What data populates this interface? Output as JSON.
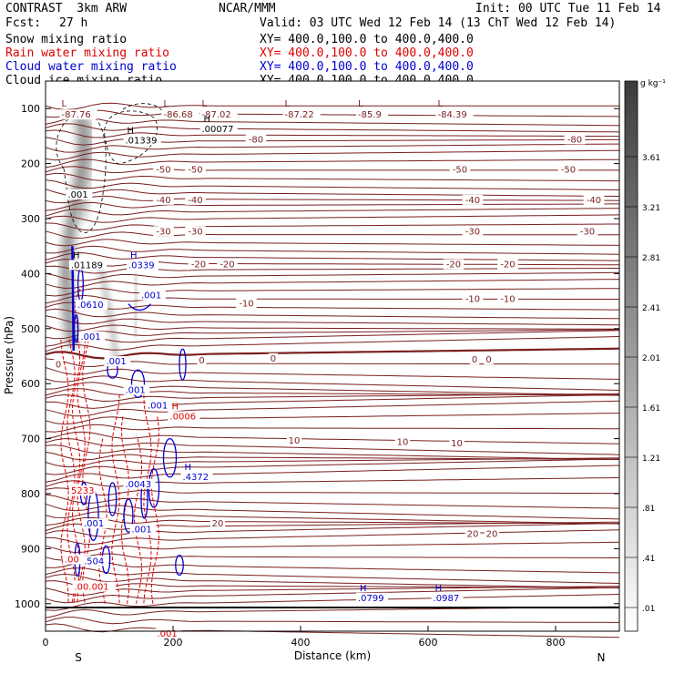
{
  "header": {
    "model": "CONTRAST  3km ARW",
    "center": "NCAR/MMM",
    "init": "Init: 00 UTC Tue 11 Feb 14",
    "fcst_label": "Fcst:",
    "fcst_value": "27 h",
    "valid": "Valid: 03 UTC Wed 12 Feb 14 (13 ChT Wed 12 Feb 14)"
  },
  "fields": [
    {
      "name": "Snow mixing ratio",
      "xy": "XY= 400.0,100.0 to 400.0,400.0",
      "color": "#000000"
    },
    {
      "name": "Rain water mixing ratio",
      "xy": "XY= 400.0,100.0 to 400.0,400.0",
      "color": "#e00000"
    },
    {
      "name": "Cloud water mixing ratio",
      "xy": "XY= 400.0,100.0 to 400.0,400.0",
      "color": "#0000d0"
    },
    {
      "name": "Cloud ice mixing ratio",
      "xy": "XY= 400.0,100.0 to 400.0,400.0",
      "color": "#000000"
    }
  ],
  "chart_data": {
    "type": "contour",
    "xlabel": "Distance (km)",
    "ylabel": "Pressure (hPa)",
    "xlim": [
      0,
      900
    ],
    "ylim": [
      1050,
      50
    ],
    "x_ticks": [
      0,
      200,
      400,
      600,
      800
    ],
    "y_ticks": [
      100,
      200,
      300,
      400,
      500,
      600,
      700,
      800,
      900,
      1000
    ],
    "x_end_labels": {
      "left": "S",
      "right": "N"
    },
    "colorbar": {
      "unit": "g kg⁻¹",
      "ticks": [
        "3.61",
        "3.21",
        "2.81",
        "2.41",
        "2.01",
        "1.61",
        "1.21",
        ".81",
        ".41",
        ".01"
      ]
    },
    "temperature_contour_labels": [
      {
        "x": 330,
        "p": 155,
        "text": "-80"
      },
      {
        "x": 830,
        "p": 155,
        "text": "-80"
      },
      {
        "x": 185,
        "p": 210,
        "text": "-50"
      },
      {
        "x": 235,
        "p": 210,
        "text": "-50"
      },
      {
        "x": 650,
        "p": 210,
        "text": "-50"
      },
      {
        "x": 820,
        "p": 210,
        "text": "-50"
      },
      {
        "x": 185,
        "p": 265,
        "text": "-40"
      },
      {
        "x": 235,
        "p": 265,
        "text": "-40"
      },
      {
        "x": 670,
        "p": 265,
        "text": "-40"
      },
      {
        "x": 860,
        "p": 265,
        "text": "-40"
      },
      {
        "x": 185,
        "p": 322,
        "text": "-30"
      },
      {
        "x": 235,
        "p": 322,
        "text": "-30"
      },
      {
        "x": 670,
        "p": 322,
        "text": "-30"
      },
      {
        "x": 850,
        "p": 322,
        "text": "-30"
      },
      {
        "x": 240,
        "p": 382,
        "text": "-20"
      },
      {
        "x": 285,
        "p": 382,
        "text": "-20"
      },
      {
        "x": 640,
        "p": 382,
        "text": "-20"
      },
      {
        "x": 725,
        "p": 382,
        "text": "-20"
      },
      {
        "x": 315,
        "p": 453,
        "text": "-10"
      },
      {
        "x": 670,
        "p": 445,
        "text": "-10"
      },
      {
        "x": 725,
        "p": 445,
        "text": "-10"
      },
      {
        "x": 20,
        "p": 564,
        "text": "0"
      },
      {
        "x": 245,
        "p": 557,
        "text": "0"
      },
      {
        "x": 357,
        "p": 553,
        "text": "0"
      },
      {
        "x": 673,
        "p": 555,
        "text": "0"
      },
      {
        "x": 695,
        "p": 555,
        "text": "0"
      },
      {
        "x": 390,
        "p": 702,
        "text": "10"
      },
      {
        "x": 560,
        "p": 705,
        "text": "10"
      },
      {
        "x": 645,
        "p": 707,
        "text": "10"
      },
      {
        "x": 270,
        "p": 853,
        "text": "20"
      },
      {
        "x": 670,
        "p": 872,
        "text": "20"
      },
      {
        "x": 700,
        "p": 872,
        "text": "20"
      }
    ],
    "low_labels": [
      {
        "x": 25,
        "p": 100,
        "text": "-87.76"
      },
      {
        "x": 185,
        "p": 100,
        "text": "-86.68"
      },
      {
        "x": 245,
        "p": 100,
        "text": "-87.02"
      },
      {
        "x": 375,
        "p": 100,
        "text": "-87.22"
      },
      {
        "x": 490,
        "p": 100,
        "text": "-85.9"
      },
      {
        "x": 615,
        "p": 100,
        "text": "-84.39"
      }
    ],
    "high_labels": [
      {
        "x": 245,
        "p": 143,
        "text": ".00077",
        "color": "#000000"
      },
      {
        "x": 125,
        "p": 163,
        "text": ".01339",
        "color": "#000000"
      },
      {
        "x": 40,
        "p": 390,
        "text": ".01189",
        "color": "#000000"
      },
      {
        "x": 130,
        "p": 390,
        "text": ".0339",
        "color": "#0000d0"
      },
      {
        "x": 195,
        "p": 665,
        "text": ".0006",
        "color": "#e00000"
      },
      {
        "x": 215,
        "p": 775,
        "text": ".4372",
        "color": "#0000d0"
      },
      {
        "x": 490,
        "p": 995,
        "text": ".0799",
        "color": "#0000d0"
      },
      {
        "x": 608,
        "p": 995,
        "text": ".0987",
        "color": "#0000d0"
      }
    ],
    "value_labels": [
      {
        "x": 35,
        "p": 262,
        "text": ".001",
        "color": "#000000"
      },
      {
        "x": 50,
        "p": 462,
        "text": ".0610",
        "color": "#0000d0"
      },
      {
        "x": 150,
        "p": 445,
        "text": ".001",
        "color": "#0000d0"
      },
      {
        "x": 55,
        "p": 520,
        "text": ".001",
        "color": "#0000d0"
      },
      {
        "x": 95,
        "p": 565,
        "text": ".001",
        "color": "#0000d0"
      },
      {
        "x": 125,
        "p": 617,
        "text": ".001",
        "color": "#0000d0"
      },
      {
        "x": 160,
        "p": 645,
        "text": ".001",
        "color": "#0000d0"
      },
      {
        "x": 125,
        "p": 788,
        "text": ".0043",
        "color": "#0000d0"
      },
      {
        "x": 40,
        "p": 800,
        "text": "5233",
        "color": "#e00000"
      },
      {
        "x": 60,
        "p": 860,
        "text": ".001",
        "color": "#0000d0"
      },
      {
        "x": 135,
        "p": 870,
        "text": ".001",
        "color": "#0000d0"
      },
      {
        "x": 30,
        "p": 925,
        "text": ".00",
        "color": "#e00000"
      },
      {
        "x": 60,
        "p": 928,
        "text": ".504",
        "color": "#0000d0"
      },
      {
        "x": 45,
        "p": 975,
        "text": ".00.001",
        "color": "#e00000"
      },
      {
        "x": 175,
        "p": 1060,
        "text": ".001",
        "color": "#e00000"
      }
    ]
  }
}
